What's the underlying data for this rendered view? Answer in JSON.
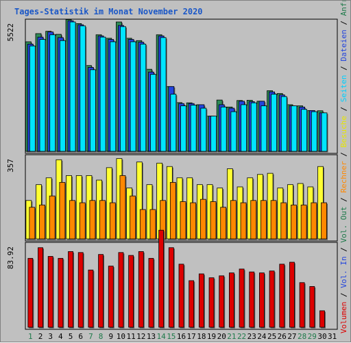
{
  "chart_data": {
    "type": "bar",
    "title": "Tages-Statistik im Monat November 2020",
    "categories": [
      "1",
      "2",
      "3",
      "4",
      "5",
      "6",
      "7",
      "8",
      "9",
      "10",
      "11",
      "12",
      "13",
      "14",
      "15",
      "16",
      "17",
      "18",
      "19",
      "20",
      "21",
      "22",
      "23",
      "24",
      "25",
      "26",
      "27",
      "28",
      "29",
      "30",
      "31"
    ],
    "weekend_days": [
      "1",
      "7",
      "8",
      "14",
      "15",
      "21",
      "22",
      "28",
      "29"
    ],
    "colors": {
      "weekday_tick": "#000000",
      "weekend_tick": "#1e7a4a",
      "anfragen": "#2e8b57",
      "dateien": "#2244dd",
      "seiten": "#00e5ff",
      "besuche": "#ffff33",
      "rechner": "#ff8800",
      "volumen": "#dd0000",
      "title": "#1a57c7",
      "background": "#c0c0c0"
    },
    "panels": [
      {
        "name": "top",
        "ymax_label": "5522",
        "ymax": 5522,
        "series": [
          {
            "name": "Anfragen",
            "label": "Anfragen",
            "values": [
              4700,
              5050,
              5150,
              5020,
              5650,
              5480,
              3680,
              5000,
              4850,
              5550,
              4850,
              4750,
              3520,
              5000,
              2780,
              2090,
              2080,
              2000,
              1510,
              2200,
              1900,
              2180,
              2190,
              2150,
              2600,
              2480,
              2000,
              1950,
              1750,
              1740,
              0
            ]
          },
          {
            "name": "Dateien",
            "label": "Dateien",
            "values": [
              4600,
              4900,
              5120,
              4880,
              5600,
              5430,
              3600,
              4950,
              4800,
              5400,
              4800,
              4680,
              3400,
              4950,
              2780,
              2050,
              2050,
              2000,
              1510,
              2000,
              1850,
              2150,
              2130,
              2150,
              2550,
              2420,
              1950,
              1900,
              1750,
              1650,
              0
            ]
          },
          {
            "name": "Seiten",
            "label": "Seiten",
            "values": [
              4520,
              4800,
              5000,
              4750,
              5550,
              5380,
              3500,
              4900,
              4700,
              5350,
              4700,
              4600,
              3300,
              4880,
              2450,
              1950,
              1980,
              1850,
              1510,
              1900,
              1700,
              2000,
              2080,
              1950,
              2450,
              2350,
              1950,
              1800,
              1700,
              1650,
              0
            ]
          }
        ]
      },
      {
        "name": "middle",
        "ymax_label": "357",
        "ymax": 357,
        "series": [
          {
            "name": "Besuche",
            "label": "Besuche",
            "values": [
              170,
              240,
              270,
              350,
              280,
              280,
              280,
              260,
              315,
              355,
              225,
              340,
              240,
              335,
              320,
              270,
              270,
              240,
              240,
              225,
              310,
              230,
              270,
              285,
              290,
              225,
              240,
              245,
              230,
              320,
              0
            ]
          },
          {
            "name": "Rechner",
            "label": "Rechner",
            "values": [
              140,
              150,
              190,
              250,
              170,
              160,
              170,
              170,
              160,
              280,
              190,
              130,
              130,
              170,
              250,
              165,
              160,
              175,
              165,
              140,
              170,
              160,
              170,
              170,
              170,
              160,
              150,
              150,
              160,
              160,
              0
            ]
          }
        ]
      },
      {
        "name": "bottom",
        "ymax_label": "83.92",
        "ymax": 83.92,
        "series": [
          {
            "name": "Volumen",
            "label": "Volumen",
            "values": [
              71,
              82,
              73,
              71,
              78,
              77,
              59,
              75,
              63,
              77,
              74,
              78,
              71,
              100,
              82,
              65,
              48,
              55,
              51,
              53,
              56,
              60,
              57,
              56,
              58,
              65,
              67,
              46,
              42,
              17,
              0
            ]
          }
        ]
      }
    ],
    "right_axis_label": [
      {
        "text": "Volumen",
        "color": "#dd0000"
      },
      {
        "text": " / ",
        "color": "#000000"
      },
      {
        "text": "Vol. In",
        "color": "#2244dd"
      },
      {
        "text": " / ",
        "color": "#000000"
      },
      {
        "text": "Vol. Out",
        "color": "#1e7a4a"
      },
      {
        "text": " / ",
        "color": "#000000"
      },
      {
        "text": "Rechner",
        "color": "#ff8800"
      },
      {
        "text": " / ",
        "color": "#000000"
      },
      {
        "text": "Besuche",
        "color": "#e6e600"
      },
      {
        "text": " / ",
        "color": "#000000"
      },
      {
        "text": "Seiten",
        "color": "#00d0ff"
      },
      {
        "text": " / ",
        "color": "#000000"
      },
      {
        "text": "Dateien",
        "color": "#2244dd"
      },
      {
        "text": " / ",
        "color": "#000000"
      },
      {
        "text": "Anfragen",
        "color": "#1e7a4a"
      }
    ]
  }
}
